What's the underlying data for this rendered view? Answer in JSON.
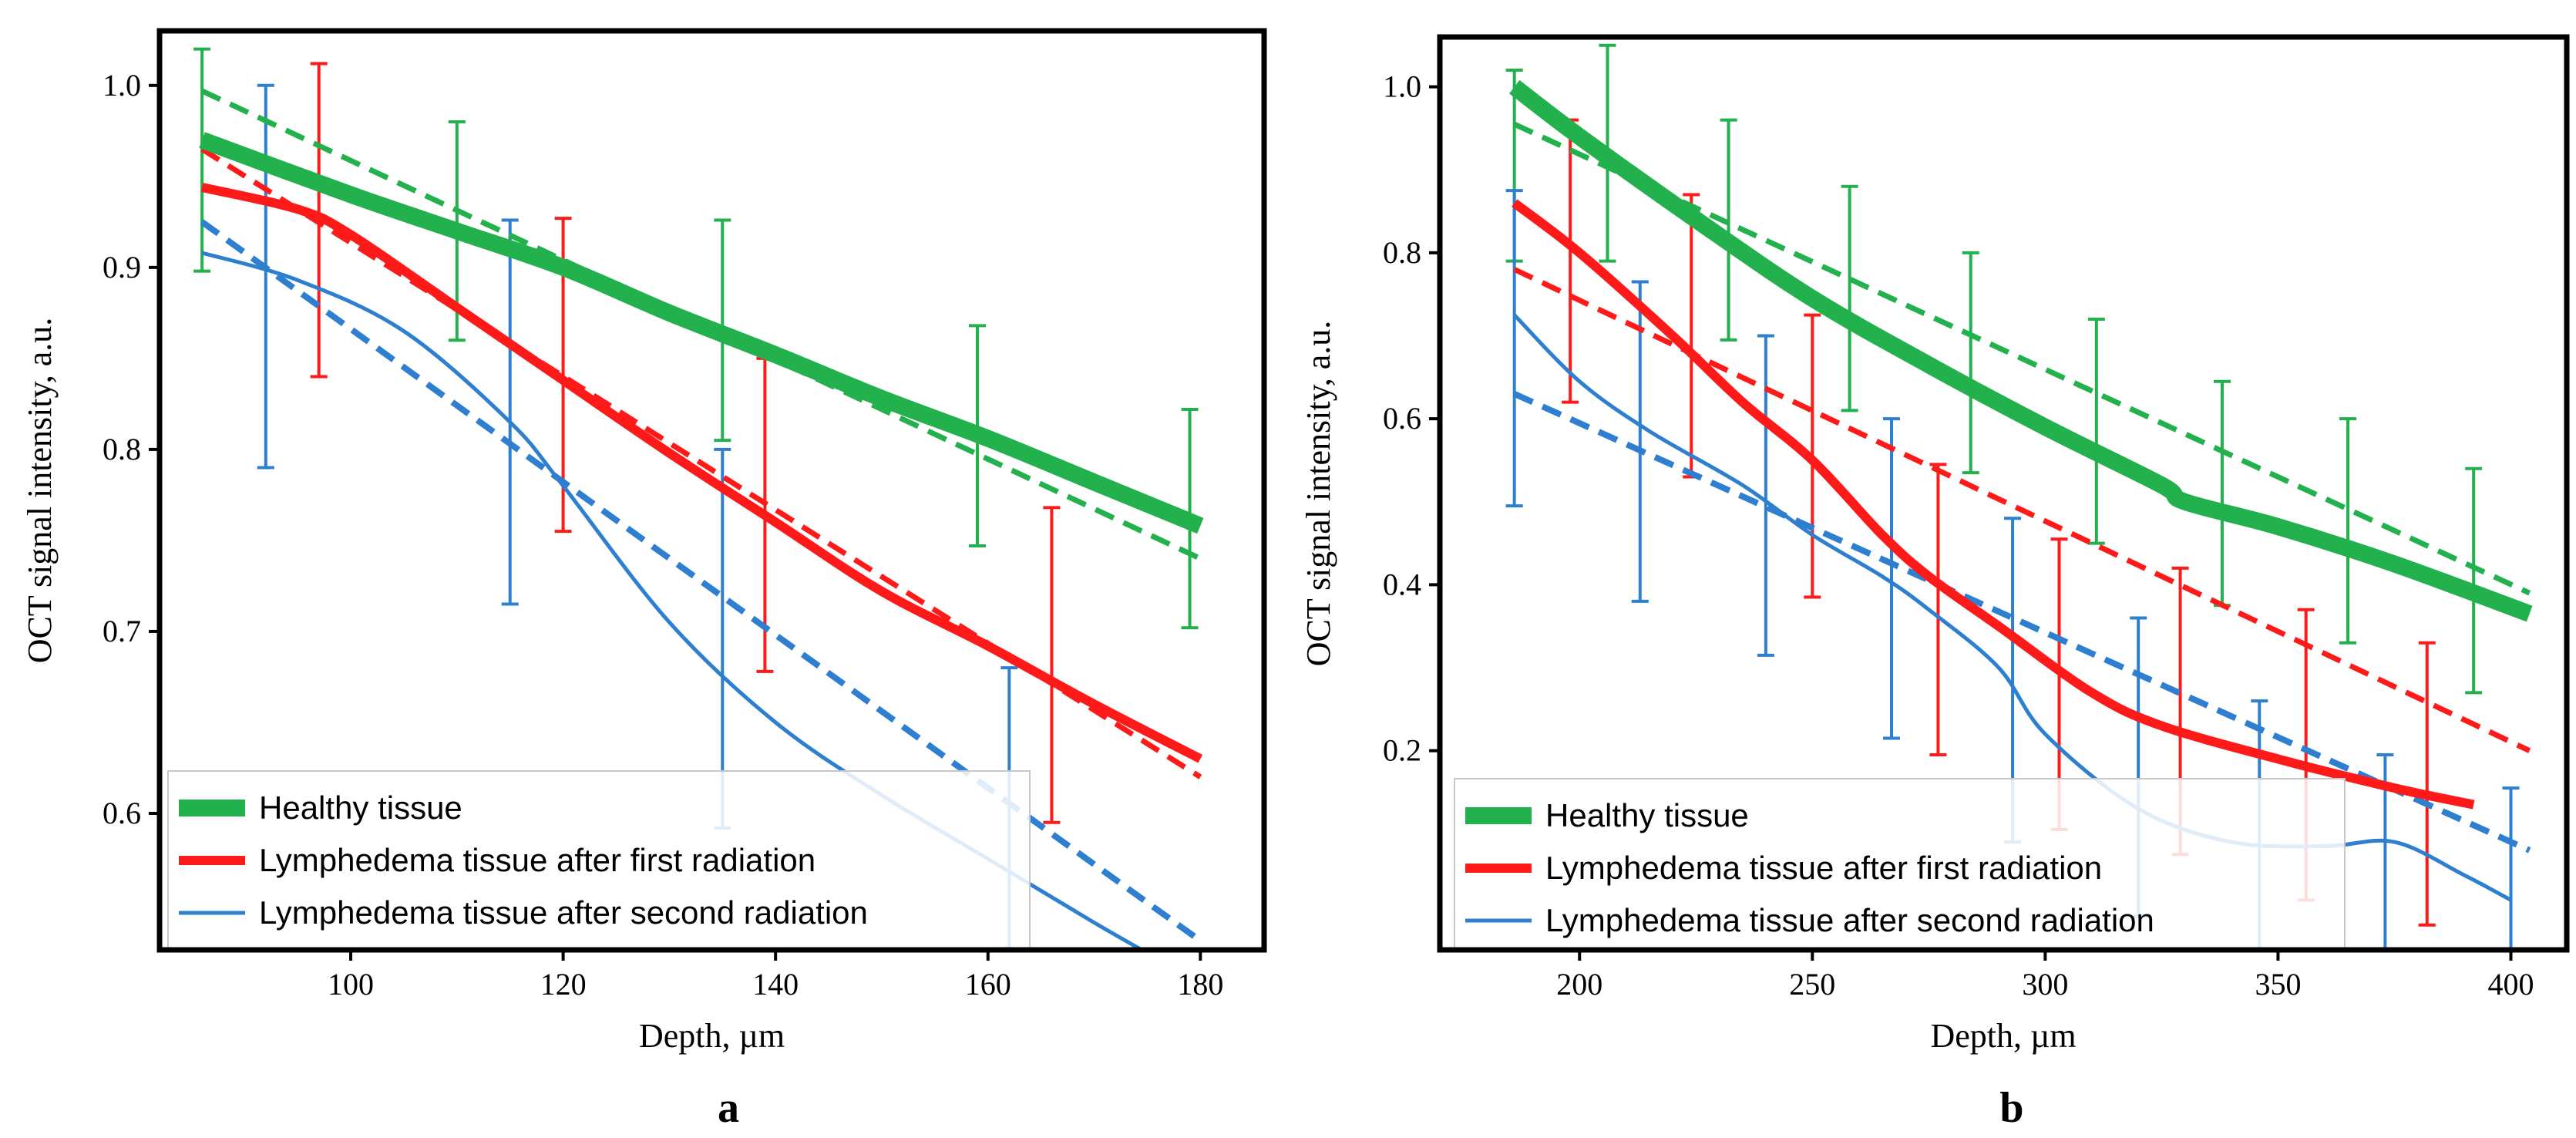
{
  "colors": {
    "healthy": "#22b14c",
    "first": "#ff1a1a",
    "second": "#2e7fd0"
  },
  "legend": [
    {
      "key": "healthy",
      "label": "Healthy tissue"
    },
    {
      "key": "first",
      "label": "Lymphedema tissue after first radiation"
    },
    {
      "key": "second",
      "label": "Lymphedema tissue after second radiation"
    }
  ],
  "chart_data": [
    {
      "type": "line",
      "panel": "a",
      "xlabel": "Depth, µm",
      "ylabel": "OCT signal intensity, a.u.",
      "xlim": [
        82,
        186
      ],
      "ylim": [
        0.525,
        1.03
      ],
      "xticks": [
        100,
        120,
        140,
        160,
        180
      ],
      "yticks": [
        0.6,
        0.7,
        0.8,
        0.9,
        1.0
      ],
      "xtick_labels": [
        "100",
        "120",
        "140",
        "160",
        "180"
      ],
      "ytick_labels": [
        "0.6",
        "0.7",
        "0.8",
        "0.9",
        "1.0"
      ],
      "series": [
        {
          "key": "healthy",
          "name": "Healthy tissue",
          "x": [
            86,
            100,
            110,
            120,
            130,
            140,
            150,
            160,
            170,
            180
          ],
          "y": [
            0.97,
            0.94,
            0.92,
            0.9,
            0.875,
            0.852,
            0.828,
            0.806,
            0.782,
            0.758
          ],
          "fit": {
            "x": [
              86,
              180
            ],
            "y": [
              0.997,
              0.74
            ]
          },
          "errors": [
            {
              "x": 86,
              "lo": 0.898,
              "hi": 1.02
            },
            {
              "x": 110,
              "lo": 0.86,
              "hi": 0.98
            },
            {
              "x": 135,
              "lo": 0.805,
              "hi": 0.926
            },
            {
              "x": 159,
              "lo": 0.747,
              "hi": 0.868
            },
            {
              "x": 179,
              "lo": 0.702,
              "hi": 0.822
            }
          ]
        },
        {
          "key": "first",
          "name": "Lymphedema tissue after first radiation",
          "x": [
            86,
            95,
            100,
            110,
            120,
            130,
            140,
            150,
            160,
            170,
            180
          ],
          "y": [
            0.944,
            0.932,
            0.918,
            0.878,
            0.838,
            0.798,
            0.76,
            0.722,
            0.692,
            0.66,
            0.63
          ],
          "fit": {
            "x": [
              86,
              180
            ],
            "y": [
              0.965,
              0.62
            ]
          },
          "errors": [
            {
              "x": 97,
              "lo": 0.84,
              "hi": 1.012
            },
            {
              "x": 120,
              "lo": 0.755,
              "hi": 0.927
            },
            {
              "x": 139,
              "lo": 0.678,
              "hi": 0.85
            },
            {
              "x": 166,
              "lo": 0.595,
              "hi": 0.768
            }
          ]
        },
        {
          "key": "second",
          "name": "Lymphedema tissue after second radiation",
          "x": [
            86,
            95,
            105,
            115,
            120,
            130,
            140,
            150,
            160,
            170,
            176
          ],
          "y": [
            0.908,
            0.893,
            0.865,
            0.815,
            0.78,
            0.705,
            0.65,
            0.61,
            0.575,
            0.54,
            0.52
          ],
          "fit": {
            "x": [
              86,
              180
            ],
            "y": [
              0.925,
              0.53
            ]
          },
          "errors": [
            {
              "x": 92,
              "lo": 0.79,
              "hi": 1.0
            },
            {
              "x": 115,
              "lo": 0.715,
              "hi": 0.926
            },
            {
              "x": 135,
              "lo": 0.592,
              "hi": 0.8
            },
            {
              "x": 162,
              "lo": 0.525,
              "hi": 0.68
            }
          ]
        }
      ]
    },
    {
      "type": "line",
      "panel": "b",
      "xlabel": "Depth, µm",
      "ylabel": "OCT signal intensity, a.u.",
      "xlim": [
        170,
        412
      ],
      "ylim": [
        -0.04,
        1.06
      ],
      "xticks": [
        200,
        250,
        300,
        350,
        400
      ],
      "yticks": [
        0.2,
        0.4,
        0.6,
        0.8,
        1.0
      ],
      "xtick_labels": [
        "200",
        "250",
        "300",
        "350",
        "400"
      ],
      "ytick_labels": [
        "0.2",
        "0.4",
        "0.6",
        "0.8",
        "1.0"
      ],
      "series": [
        {
          "key": "healthy",
          "name": "Healthy tissue",
          "x": [
            186,
            200,
            225,
            250,
            275,
            300,
            325,
            330,
            350,
            375,
            404
          ],
          "y": [
            1.0,
            0.94,
            0.84,
            0.745,
            0.665,
            0.59,
            0.52,
            0.5,
            0.47,
            0.425,
            0.365
          ],
          "fit": {
            "x": [
              186,
              404
            ],
            "y": [
              0.955,
              0.39
            ]
          },
          "errors": [
            {
              "x": 186,
              "lo": 0.79,
              "hi": 1.02
            },
            {
              "x": 206,
              "lo": 0.79,
              "hi": 1.05
            },
            {
              "x": 232,
              "lo": 0.695,
              "hi": 0.96
            },
            {
              "x": 258,
              "lo": 0.61,
              "hi": 0.88
            },
            {
              "x": 284,
              "lo": 0.535,
              "hi": 0.8
            },
            {
              "x": 311,
              "lo": 0.45,
              "hi": 0.72
            },
            {
              "x": 338,
              "lo": 0.375,
              "hi": 0.645
            },
            {
              "x": 365,
              "lo": 0.33,
              "hi": 0.6
            },
            {
              "x": 392,
              "lo": 0.27,
              "hi": 0.54
            }
          ]
        },
        {
          "key": "first",
          "name": "Lymphedema tissue after first radiation",
          "x": [
            186,
            200,
            220,
            235,
            250,
            265,
            275,
            290,
            310,
            325,
            350,
            375,
            392
          ],
          "y": [
            0.86,
            0.8,
            0.7,
            0.62,
            0.55,
            0.46,
            0.41,
            0.35,
            0.27,
            0.23,
            0.19,
            0.155,
            0.135
          ],
          "fit": {
            "x": [
              186,
              404
            ],
            "y": [
              0.78,
              0.2
            ]
          },
          "errors": [
            {
              "x": 198,
              "lo": 0.62,
              "hi": 0.96
            },
            {
              "x": 224,
              "lo": 0.53,
              "hi": 0.87
            },
            {
              "x": 250,
              "lo": 0.385,
              "hi": 0.725
            },
            {
              "x": 277,
              "lo": 0.195,
              "hi": 0.545
            },
            {
              "x": 303,
              "lo": 0.105,
              "hi": 0.455
            },
            {
              "x": 329,
              "lo": 0.075,
              "hi": 0.42
            },
            {
              "x": 356,
              "lo": 0.02,
              "hi": 0.37
            },
            {
              "x": 382,
              "lo": -0.01,
              "hi": 0.33
            }
          ]
        },
        {
          "key": "second",
          "name": "Lymphedema tissue after second radiation",
          "x": [
            186,
            200,
            215,
            235,
            250,
            265,
            275,
            290,
            300,
            320,
            340,
            360,
            375,
            390,
            400
          ],
          "y": [
            0.725,
            0.645,
            0.585,
            0.52,
            0.46,
            0.41,
            0.37,
            0.3,
            0.22,
            0.13,
            0.09,
            0.085,
            0.09,
            0.05,
            0.02
          ],
          "fit": {
            "x": [
              186,
              404
            ],
            "y": [
              0.63,
              0.08
            ]
          },
          "errors": [
            {
              "x": 186,
              "lo": 0.495,
              "hi": 0.875
            },
            {
              "x": 213,
              "lo": 0.38,
              "hi": 0.765
            },
            {
              "x": 240,
              "lo": 0.315,
              "hi": 0.7
            },
            {
              "x": 267,
              "lo": 0.215,
              "hi": 0.6
            },
            {
              "x": 293,
              "lo": 0.09,
              "hi": 0.48
            },
            {
              "x": 320,
              "lo": 0.0,
              "hi": 0.36
            },
            {
              "x": 346,
              "lo": -0.04,
              "hi": 0.26
            },
            {
              "x": 373,
              "lo": -0.04,
              "hi": 0.195
            },
            {
              "x": 400,
              "lo": -0.04,
              "hi": 0.155
            }
          ]
        }
      ]
    }
  ],
  "panel_labels": [
    "a",
    "b"
  ]
}
